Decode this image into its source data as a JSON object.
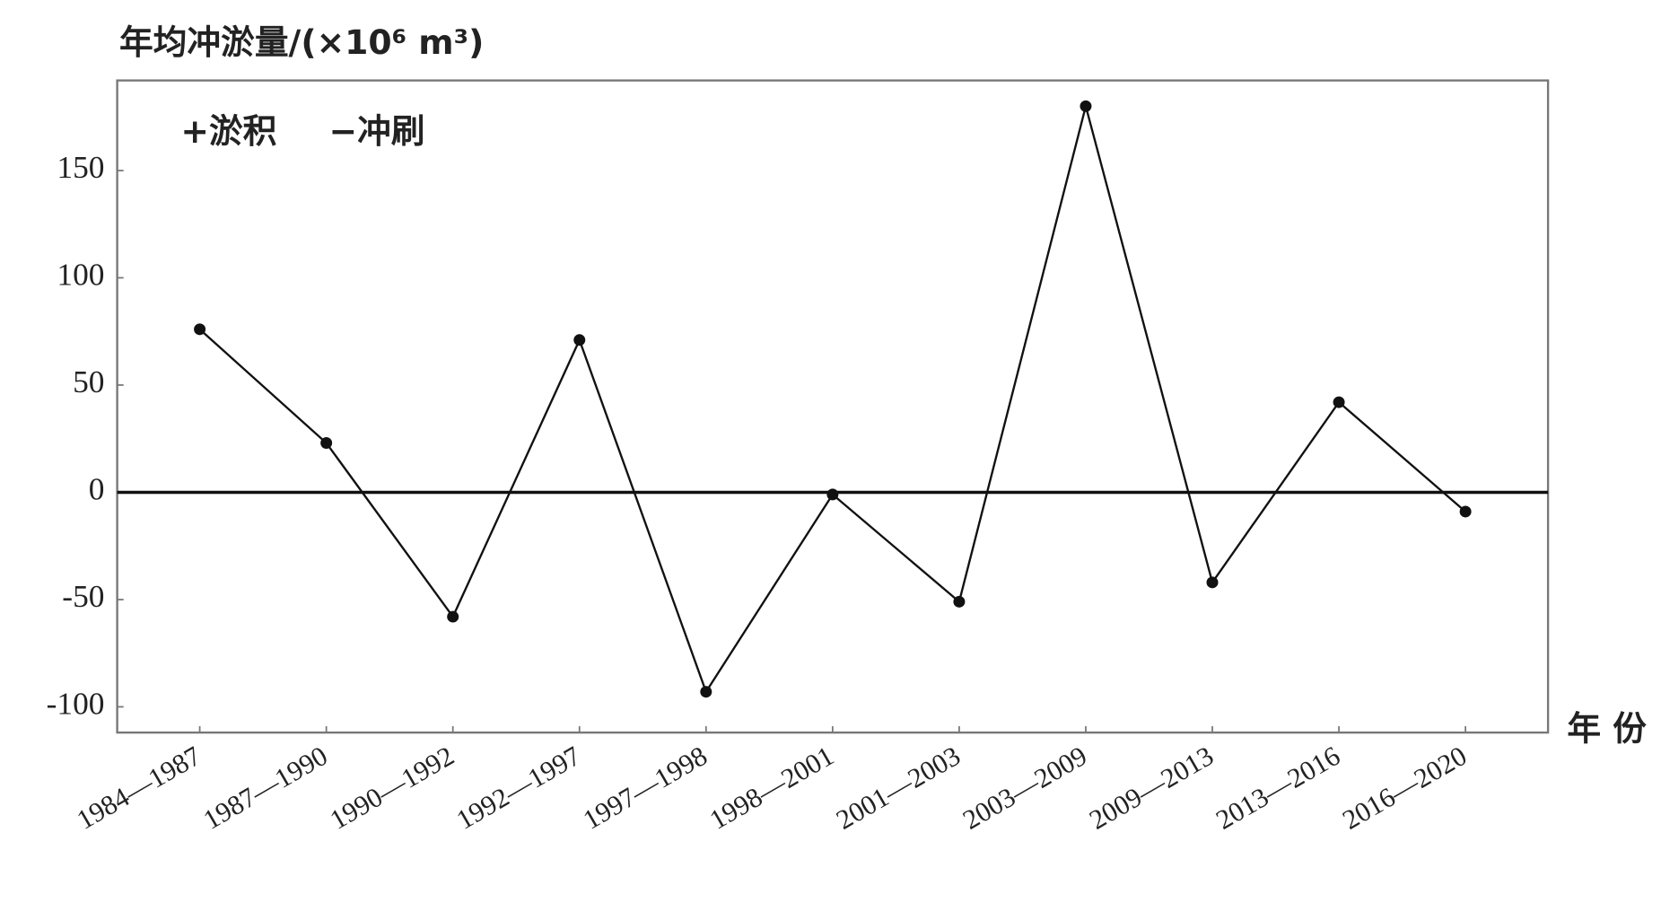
{
  "chart_data": {
    "type": "line",
    "title": "年均冲淤量/(×10⁶ m³)",
    "x_label": "年 份",
    "annotations": [
      "+淤积",
      "−冲刷"
    ],
    "categories": [
      "1984—1987",
      "1987—1990",
      "1990—1992",
      "1992—1997",
      "1997—1998",
      "1998—2001",
      "2001—2003",
      "2003—2009",
      "2009—2013",
      "2013—2016",
      "2016—2020"
    ],
    "values": [
      76,
      23,
      -58,
      71,
      -93,
      -1,
      -51,
      180,
      -42,
      42,
      -9
    ],
    "color": "#111111",
    "ylim": [
      -112,
      192
    ],
    "yticks": [
      -100,
      -50,
      0,
      50,
      100,
      150
    ],
    "grid": false
  }
}
